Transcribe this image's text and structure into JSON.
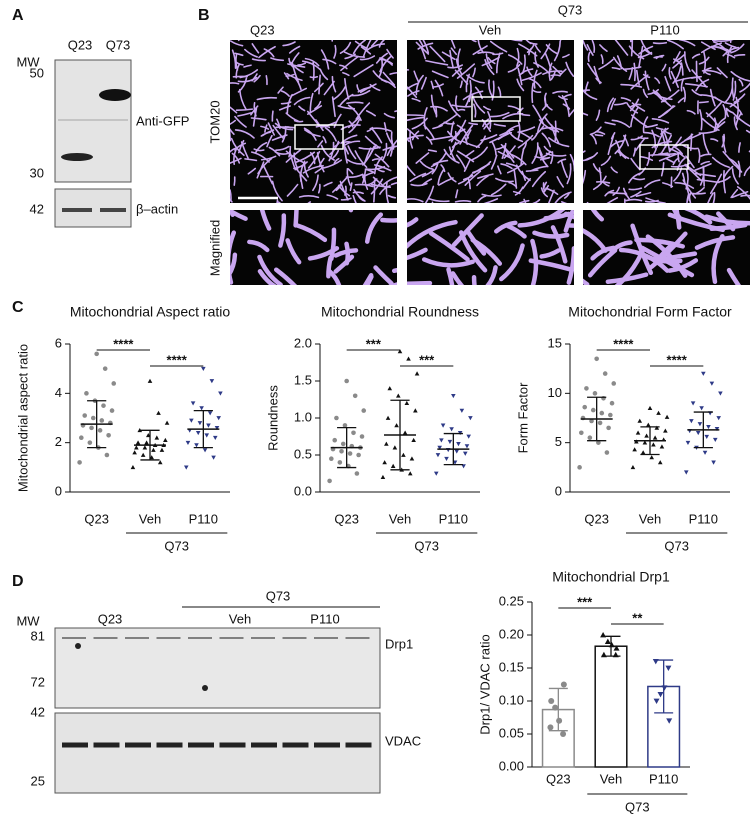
{
  "panel_labels": [
    "A",
    "B",
    "C",
    "D"
  ],
  "blot_a": {
    "lanes": [
      "Q23",
      "Q73"
    ],
    "mw_title": "MW",
    "markers": [
      "50",
      "30",
      "42"
    ],
    "labels": [
      "Anti-GFP",
      "β–actin"
    ]
  },
  "micrographs": {
    "group": "Q73",
    "columns": [
      "Q23",
      "Veh",
      "P110"
    ],
    "rows": [
      "TOM20",
      "Magnified"
    ]
  },
  "blot_d": {
    "group": "Q73",
    "lanes": [
      "Q23",
      "Veh",
      "P110"
    ],
    "mw_title": "MW",
    "markers": [
      "81",
      "72",
      "42",
      "25"
    ],
    "labels": [
      "Drp1",
      "VDAC"
    ]
  },
  "chart_data": [
    {
      "type": "dotplot",
      "title": "Mitochondrial Aspect ratio",
      "y_label": "Mitochondrial aspect ratio",
      "categories": [
        "Q23",
        "Veh",
        "P110"
      ],
      "group": {
        "label": "Q73",
        "categories": [
          "Veh",
          "P110"
        ]
      },
      "colors": [
        "#8a8a8a",
        "#111111",
        "#2e3a87"
      ],
      "markers": [
        "circle",
        "triangle",
        "triangle-down"
      ],
      "means": [
        2.75,
        1.9,
        2.55
      ],
      "sds": [
        0.95,
        0.6,
        0.75
      ],
      "points": [
        [
          1.2,
          1.5,
          1.8,
          2.0,
          2.2,
          2.3,
          2.5,
          2.6,
          2.7,
          2.8,
          2.9,
          3.0,
          3.1,
          3.3,
          3.5,
          3.7,
          4.0,
          4.4,
          5.0,
          5.6
        ],
        [
          1.0,
          1.2,
          1.4,
          1.5,
          1.6,
          1.7,
          1.7,
          1.8,
          1.8,
          1.9,
          1.9,
          2.0,
          2.0,
          2.1,
          2.2,
          2.3,
          2.5,
          2.8,
          3.2,
          4.5
        ],
        [
          1.0,
          1.4,
          1.7,
          1.9,
          2.0,
          2.2,
          2.3,
          2.4,
          2.5,
          2.6,
          2.7,
          2.8,
          2.9,
          3.0,
          3.2,
          3.4,
          3.6,
          4.0,
          4.5,
          5.0
        ]
      ],
      "ylim": [
        0,
        6
      ],
      "yticks": [
        0,
        2,
        4,
        6
      ],
      "annotations": [
        {
          "between": [
            "Q23",
            "Veh"
          ],
          "text": "****"
        },
        {
          "between": [
            "Veh",
            "P110"
          ],
          "text": "****"
        }
      ]
    },
    {
      "type": "dotplot",
      "title": "Mitochondrial Roundness",
      "y_label": "Roundness",
      "categories": [
        "Q23",
        "Veh",
        "P110"
      ],
      "group": {
        "label": "Q73",
        "categories": [
          "Veh",
          "P110"
        ]
      },
      "colors": [
        "#8a8a8a",
        "#111111",
        "#2e3a87"
      ],
      "markers": [
        "circle",
        "triangle",
        "triangle-down"
      ],
      "means": [
        0.6,
        0.77,
        0.58
      ],
      "sds": [
        0.27,
        0.47,
        0.21
      ],
      "points": [
        [
          0.15,
          0.25,
          0.35,
          0.4,
          0.45,
          0.5,
          0.52,
          0.55,
          0.58,
          0.6,
          0.62,
          0.65,
          0.7,
          0.75,
          0.8,
          0.9,
          1.0,
          1.1,
          1.3,
          1.5
        ],
        [
          0.2,
          0.25,
          0.3,
          0.35,
          0.4,
          0.45,
          0.5,
          0.6,
          0.65,
          0.7,
          0.8,
          0.9,
          1.0,
          1.1,
          1.2,
          1.3,
          1.4,
          1.6,
          1.8,
          1.9
        ],
        [
          0.25,
          0.35,
          0.4,
          0.45,
          0.5,
          0.52,
          0.55,
          0.57,
          0.6,
          0.62,
          0.65,
          0.68,
          0.7,
          0.75,
          0.8,
          0.85,
          0.9,
          1.0,
          1.1,
          1.3
        ]
      ],
      "ylim": [
        0,
        2
      ],
      "yticks": [
        {
          "value": 0,
          "label": "0.0"
        },
        0.5,
        {
          "value": 1,
          "label": "1.0"
        },
        1.5,
        {
          "value": 2,
          "label": "2.0"
        }
      ],
      "annotations": [
        {
          "between": [
            "Q23",
            "Veh"
          ],
          "text": "***"
        },
        {
          "between": [
            "Veh",
            "P110"
          ],
          "text": "***"
        }
      ]
    },
    {
      "type": "dotplot",
      "title": "Mitochondrial Form Factor",
      "y_label": "Form Factor",
      "categories": [
        "Q23",
        "Veh",
        "P110"
      ],
      "group": {
        "label": "Q73",
        "categories": [
          "Veh",
          "P110"
        ]
      },
      "colors": [
        "#8a8a8a",
        "#111111",
        "#2e3a87"
      ],
      "markers": [
        "circle",
        "triangle",
        "triangle-down"
      ],
      "means": [
        7.4,
        5.2,
        6.3
      ],
      "sds": [
        2.2,
        1.4,
        1.8
      ],
      "points": [
        [
          2.5,
          4,
          5,
          5.5,
          6,
          6.5,
          7,
          7.2,
          7.5,
          7.8,
          8,
          8.3,
          8.6,
          9,
          9.5,
          10,
          10.5,
          11,
          12,
          13.5
        ],
        [
          2.5,
          3,
          3.5,
          4,
          4.3,
          4.6,
          4.8,
          5,
          5.1,
          5.3,
          5.5,
          5.7,
          6,
          6.2,
          6.5,
          6.8,
          7.2,
          7.6,
          8,
          8.5
        ],
        [
          2,
          3,
          4,
          4.5,
          5,
          5.3,
          5.6,
          6,
          6.2,
          6.4,
          6.6,
          6.9,
          7.2,
          7.5,
          8,
          8.5,
          9,
          10,
          11,
          12
        ]
      ],
      "ylim": [
        0,
        15
      ],
      "yticks": [
        0,
        5,
        10,
        15
      ],
      "annotations": [
        {
          "between": [
            "Q23",
            "Veh"
          ],
          "text": "****"
        },
        {
          "between": [
            "Veh",
            "P110"
          ],
          "text": "****"
        }
      ]
    },
    {
      "type": "bar",
      "title": "Mitochondrial Drp1",
      "y_label": "Drp1/ VDAC ratio",
      "categories": [
        "Q23",
        "Veh",
        "P110"
      ],
      "group": {
        "label": "Q73",
        "categories": [
          "Veh",
          "P110"
        ]
      },
      "colors": [
        "#8a8a8a",
        "#111111",
        "#2e3a87"
      ],
      "markers": [
        "circle",
        "triangle",
        "triangle-down"
      ],
      "means": [
        0.087,
        0.183,
        0.122
      ],
      "sds": [
        0.032,
        0.015,
        0.04
      ],
      "points": [
        [
          0.06,
          0.05,
          0.07,
          0.09,
          0.1,
          0.125
        ],
        [
          0.2,
          0.17,
          0.185,
          0.19,
          0.17,
          0.18
        ],
        [
          0.16,
          0.15,
          0.12,
          0.11,
          0.1,
          0.07
        ]
      ],
      "ylim": [
        0,
        0.25
      ],
      "yticks": [
        {
          "value": 0,
          "label": "0.00"
        },
        0.05,
        {
          "value": 0.1,
          "label": "0.10"
        },
        0.15,
        {
          "value": 0.2,
          "label": "0.20"
        },
        0.25
      ],
      "annotations": [
        {
          "between": [
            "Q23",
            "Veh"
          ],
          "text": "***"
        },
        {
          "between": [
            "Veh",
            "P110"
          ],
          "text": "**"
        }
      ]
    }
  ]
}
